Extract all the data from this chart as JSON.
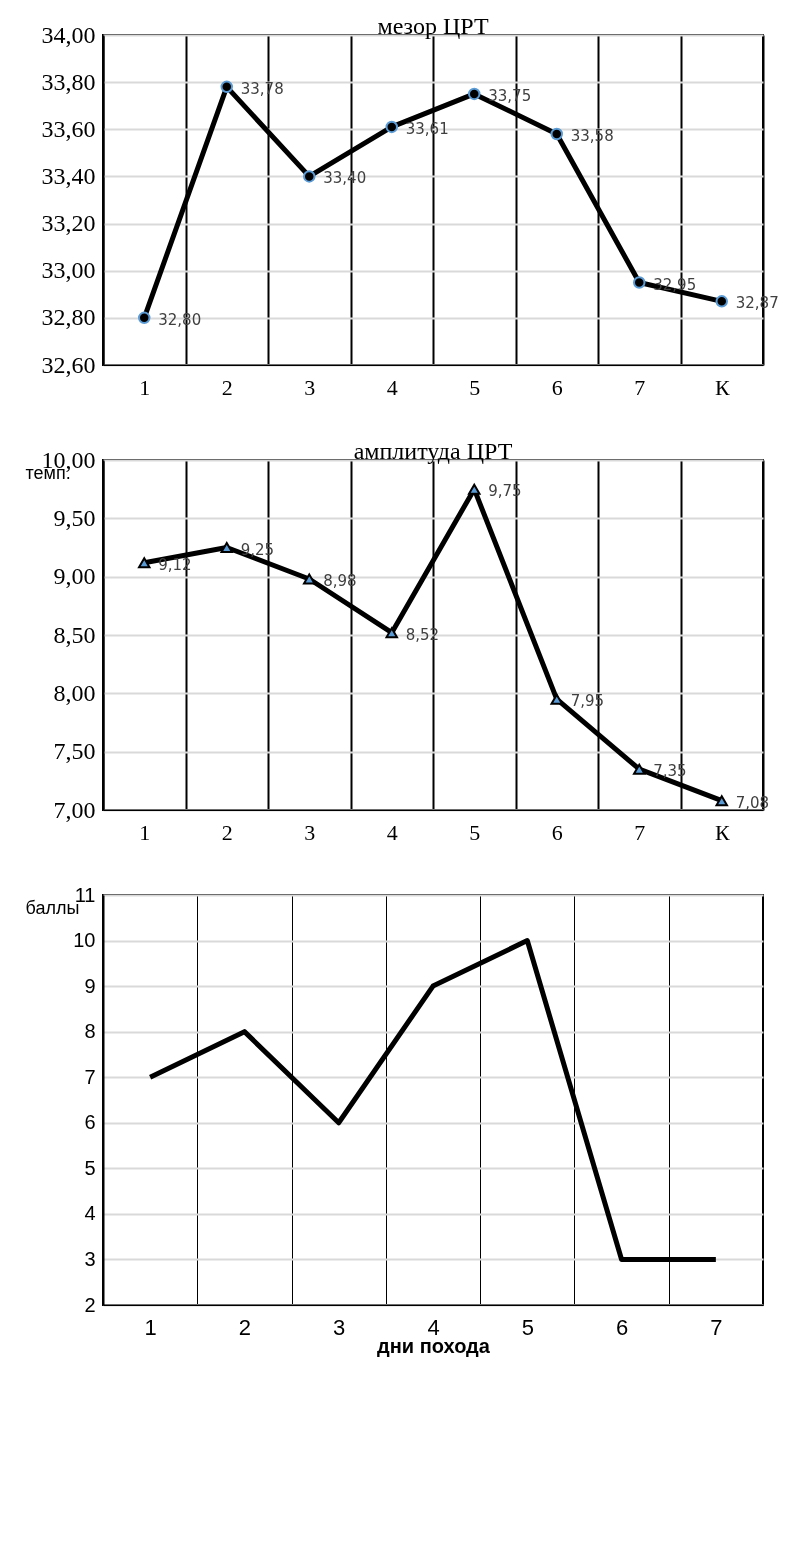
{
  "chart_data": [
    {
      "type": "line",
      "title": "мезор ЦРТ",
      "categories": [
        "1",
        "2",
        "3",
        "4",
        "5",
        "6",
        "7",
        "К"
      ],
      "series": [
        {
          "color": "#000000",
          "values": [
            32.8,
            33.78,
            33.4,
            33.61,
            33.75,
            33.58,
            32.95,
            32.87
          ],
          "value_labels": [
            "32,80",
            "33,78",
            "33,40",
            "33,61",
            "33,75",
            "33,58",
            "32,95",
            "32,87"
          ]
        }
      ],
      "ylim": [
        32.6,
        34.0
      ],
      "yticks": [
        {
          "value": 32.6,
          "label": "32,60"
        },
        {
          "value": 32.8,
          "label": "32,80"
        },
        {
          "value": 33.0,
          "label": "33,00"
        },
        {
          "value": 33.2,
          "label": "33,20"
        },
        {
          "value": 33.4,
          "label": "33,40"
        },
        {
          "value": 33.6,
          "label": "33,60"
        },
        {
          "value": 33.8,
          "label": "33,80"
        },
        {
          "value": 34.0,
          "label": "34,00"
        }
      ],
      "grid": true,
      "marker": "circle",
      "line_style": "solid"
    },
    {
      "type": "line",
      "title": "амплитуда ЦРТ",
      "ylabel": "темп.",
      "categories": [
        "1",
        "2",
        "3",
        "4",
        "5",
        "6",
        "7",
        "К"
      ],
      "series": [
        {
          "color": "#000000",
          "values": [
            9.12,
            9.25,
            8.98,
            8.52,
            9.75,
            7.95,
            7.35,
            7.08
          ],
          "value_labels": [
            "9,12",
            "9,25",
            "8,98",
            "8,52",
            "9,75",
            "7,95",
            "7,35",
            "7,08"
          ]
        }
      ],
      "ylim": [
        7.0,
        10.0
      ],
      "yticks": [
        {
          "value": 7.0,
          "label": "7,00"
        },
        {
          "value": 7.5,
          "label": "7,50"
        },
        {
          "value": 8.0,
          "label": "8,00"
        },
        {
          "value": 8.5,
          "label": "8,50"
        },
        {
          "value": 9.0,
          "label": "9,00"
        },
        {
          "value": 9.5,
          "label": "9,50"
        },
        {
          "value": 10.0,
          "label": "10,00"
        }
      ],
      "grid": true,
      "marker": "triangle",
      "line_style": "solid"
    },
    {
      "type": "line",
      "ylabel": "баллы",
      "xlabel": "дни похода",
      "categories": [
        "1",
        "2",
        "3",
        "4",
        "5",
        "6",
        "7"
      ],
      "series": [
        {
          "color": "#000000",
          "values": [
            7,
            8,
            6,
            9,
            10,
            3,
            3
          ]
        }
      ],
      "ylim": [
        2,
        11
      ],
      "yticks": [
        2,
        3,
        4,
        5,
        6,
        7,
        8,
        9,
        10,
        11
      ],
      "grid": true,
      "marker": "none",
      "line_style": "solid"
    }
  ]
}
